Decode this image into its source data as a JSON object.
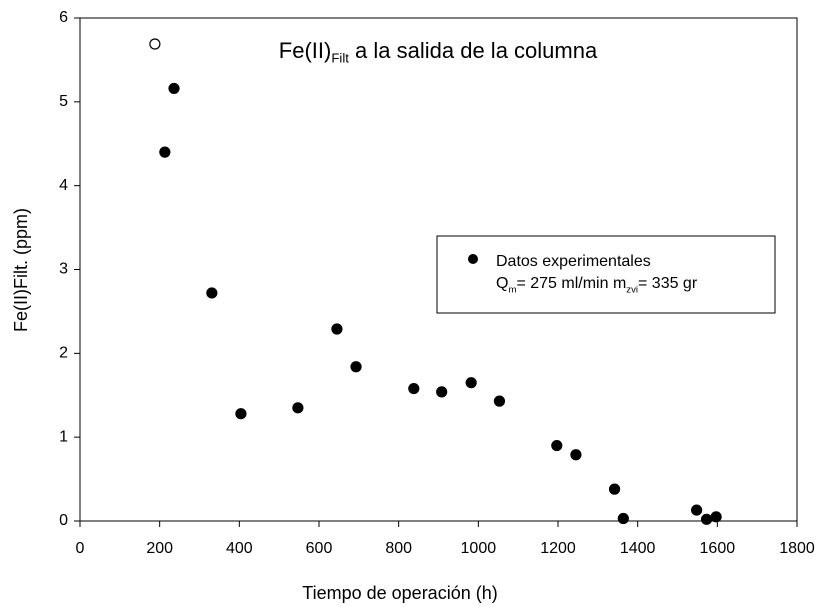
{
  "chart_data": {
    "type": "scatter",
    "title_parts": [
      "Fe(II)",
      "Filt",
      " a la salida de la columna"
    ],
    "x_label": "Tiempo de operación (h)",
    "y_label": "Fe(II)Filt. (ppm)",
    "xlim": [
      0,
      1800
    ],
    "xticks": [
      0,
      200,
      400,
      600,
      800,
      1000,
      1200,
      1400,
      1600,
      1800
    ],
    "ylim": [
      0,
      6
    ],
    "yticks": [
      0,
      1,
      2,
      3,
      4,
      5,
      6
    ],
    "series": [
      {
        "name": "Datos experimentales",
        "color": "#000000",
        "marker": "filled",
        "x": [
          213,
          236,
          331,
          404,
          547,
          645,
          693,
          838,
          908,
          982,
          1053,
          1197,
          1245,
          1342,
          1364,
          1548,
          1573,
          1597
        ],
        "values": [
          4.4,
          5.16,
          2.72,
          1.28,
          1.35,
          2.29,
          1.84,
          1.58,
          1.54,
          1.65,
          1.43,
          0.9,
          0.79,
          0.38,
          0.03,
          0.13,
          0.02,
          0.05
        ]
      },
      {
        "color": "#000000",
        "marker": "open",
        "x": [
          188
        ],
        "values": [
          5.69
        ]
      }
    ],
    "legend_note_parts": [
      "Q",
      "m",
      "= 275 ml/min m",
      "zvi",
      "= 335 gr"
    ]
  }
}
